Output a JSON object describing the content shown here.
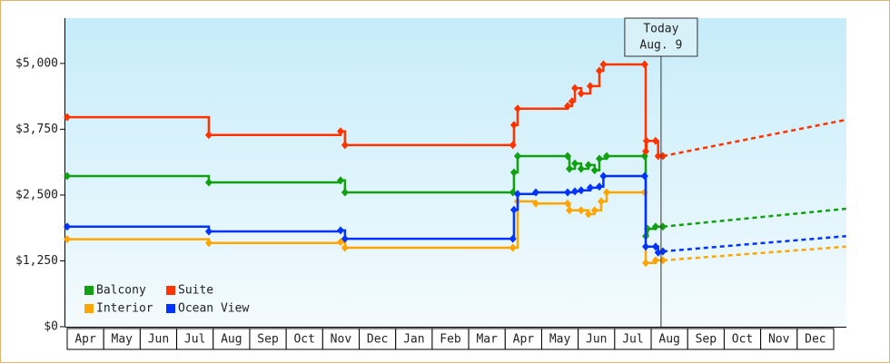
{
  "chart_data": {
    "type": "step-line",
    "categories": [
      "Apr",
      "May",
      "Jun",
      "Jul",
      "Aug",
      "Sep",
      "Oct",
      "Nov",
      "Dec",
      "Jan",
      "Feb",
      "Mar",
      "Apr",
      "May",
      "Jun",
      "Jul",
      "Aug",
      "Sep",
      "Oct",
      "Nov",
      "Dec"
    ],
    "xlim": [
      0,
      21
    ],
    "ylim": [
      0,
      5860
    ],
    "yticks": [
      {
        "value": 0,
        "label": "$0"
      },
      {
        "value": 1250,
        "label": "$1,250"
      },
      {
        "value": 2500,
        "label": "$2,500"
      },
      {
        "value": 3750,
        "label": "$3,750"
      },
      {
        "value": 5000,
        "label": "$5,000"
      }
    ],
    "grid": false,
    "today": {
      "x": 16.27,
      "label": [
        "Today",
        "Aug. 9"
      ]
    },
    "series": [
      {
        "name": "Balcony",
        "color": "#10a010",
        "x": [
          0,
          3.88,
          7.49,
          7.61,
          12.21,
          12.24,
          12.34,
          13.71,
          13.76,
          13.91,
          14.08,
          14.28,
          14.45,
          14.58,
          14.78,
          15.82,
          15.85,
          15.9,
          16.12,
          16.32
        ],
        "values": [
          2860,
          2740,
          2780,
          2550,
          2550,
          2930,
          3240,
          3240,
          3000,
          3100,
          3000,
          3070,
          2970,
          3190,
          3240,
          3240,
          1720,
          1860,
          1900,
          1900
        ],
        "projection": {
          "x": [
            16.32,
            21.34
          ],
          "values": [
            1900,
            2240
          ]
        }
      },
      {
        "name": "Suite",
        "color": "#ff3300",
        "x": [
          0,
          3.88,
          7.49,
          7.61,
          12.21,
          12.24,
          12.34,
          13.71,
          13.83,
          13.91,
          14.08,
          14.33,
          14.58,
          14.69,
          15.82,
          15.85,
          15.87,
          16.12,
          16.19,
          16.32
        ],
        "values": [
          3980,
          3640,
          3710,
          3450,
          3450,
          3830,
          4140,
          4190,
          4280,
          4530,
          4430,
          4570,
          4860,
          4980,
          4980,
          3330,
          3530,
          3530,
          3240,
          3240
        ],
        "projection": {
          "x": [
            16.32,
            21.34
          ],
          "values": [
            3240,
            3930
          ]
        }
      },
      {
        "name": "Interior",
        "color": "#ffa500",
        "x": [
          0,
          3.88,
          7.49,
          7.61,
          12.21,
          12.34,
          12.84,
          13.71,
          13.76,
          14.08,
          14.28,
          14.45,
          14.63,
          14.78,
          15.82,
          15.85,
          16.12,
          16.32
        ],
        "values": [
          1660,
          1590,
          1610,
          1500,
          1500,
          2380,
          2340,
          2340,
          2210,
          2210,
          2140,
          2210,
          2380,
          2550,
          2550,
          1210,
          1260,
          1260
        ],
        "projection": {
          "x": [
            16.32,
            21.34
          ],
          "values": [
            1260,
            1520
          ]
        }
      },
      {
        "name": "Ocean View",
        "color": "#0033ff",
        "x": [
          0,
          3.88,
          7.49,
          7.61,
          12.21,
          12.24,
          12.34,
          12.84,
          13.71,
          13.91,
          14.08,
          14.33,
          14.58,
          14.69,
          15.82,
          15.85,
          16.12,
          16.19,
          16.32
        ],
        "values": [
          1900,
          1810,
          1830,
          1670,
          1670,
          2220,
          2520,
          2550,
          2550,
          2570,
          2590,
          2640,
          2660,
          2860,
          2860,
          1520,
          1520,
          1410,
          1430
        ],
        "projection": {
          "x": [
            16.32,
            21.34
          ],
          "values": [
            1430,
            1720
          ]
        }
      }
    ]
  }
}
